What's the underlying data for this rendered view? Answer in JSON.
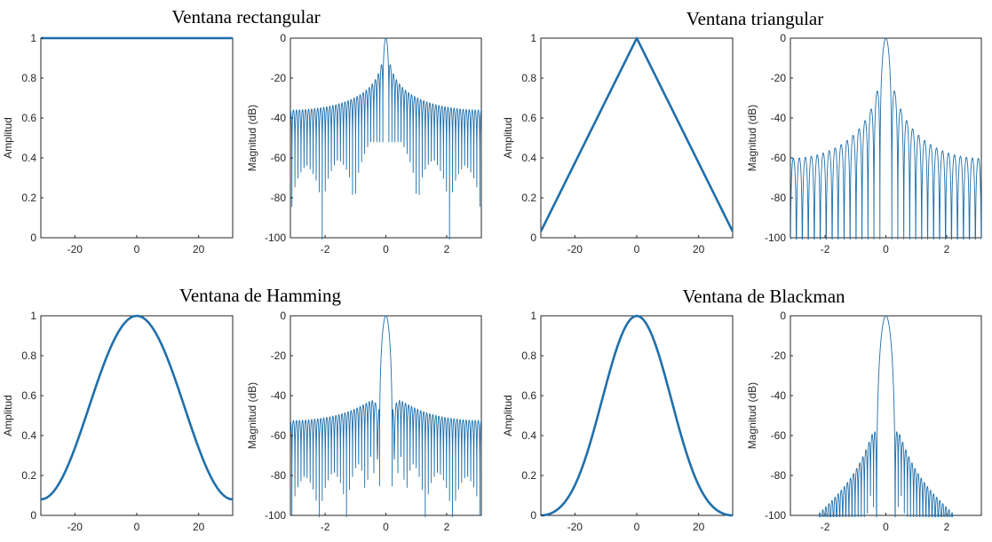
{
  "line_color": "#1f6fab",
  "chart_data": [
    {
      "type": "line",
      "panel": "time",
      "window": "rectangular",
      "title": "Ventana rectangular",
      "xlabel": "",
      "ylabel": "Amplitud",
      "xlim": [
        -31,
        31
      ],
      "ylim": [
        0,
        1
      ],
      "xticks": [
        -20,
        0,
        20
      ],
      "yticks": [
        0,
        0.2,
        0.4,
        0.6,
        0.8,
        1
      ],
      "x": [
        -31,
        -20,
        -10,
        0,
        10,
        20,
        31
      ],
      "values": [
        1,
        1,
        1,
        1,
        1,
        1,
        1
      ]
    },
    {
      "type": "line",
      "panel": "frequency",
      "window": "rectangular",
      "title": "",
      "xlabel": "",
      "ylabel": "Magnitud (dB)",
      "xlim": [
        -3.14159,
        3.14159
      ],
      "ylim": [
        -100,
        0
      ],
      "xticks": [
        -2,
        0,
        2
      ],
      "yticks": [
        -100,
        -80,
        -60,
        -40,
        -20,
        0
      ],
      "x": [
        -3.14,
        -2,
        -1,
        -0.5,
        -0.2,
        0,
        0.2,
        0.5,
        1,
        2,
        3.14
      ],
      "values": [
        -36,
        -37,
        -34,
        -30,
        -20,
        0,
        -20,
        -30,
        -34,
        -37,
        -36
      ]
    },
    {
      "type": "line",
      "panel": "time",
      "window": "triangular",
      "title": "Ventana triangular",
      "xlabel": "",
      "ylabel": "Amplitud",
      "xlim": [
        -31,
        31
      ],
      "ylim": [
        0,
        1
      ],
      "xticks": [
        -20,
        0,
        20
      ],
      "yticks": [
        0,
        0.2,
        0.4,
        0.6,
        0.8,
        1
      ],
      "x": [
        -31,
        -20,
        -10,
        0,
        10,
        20,
        31
      ],
      "values": [
        0.02,
        0.37,
        0.68,
        0.98,
        0.68,
        0.37,
        0.02
      ]
    },
    {
      "type": "line",
      "panel": "frequency",
      "window": "triangular",
      "title": "",
      "xlabel": "",
      "ylabel": "Magnitud (dB)",
      "xlim": [
        -3.14159,
        3.14159
      ],
      "ylim": [
        -100,
        0
      ],
      "xticks": [
        -2,
        0,
        2
      ],
      "yticks": [
        -100,
        -80,
        -60,
        -40,
        -20,
        0
      ],
      "x": [
        -3.14,
        -2,
        -1,
        -0.5,
        -0.2,
        0,
        0.2,
        0.5,
        1,
        2,
        3.14
      ],
      "values": [
        -85,
        -68,
        -52,
        -43,
        -30,
        0,
        -30,
        -43,
        -52,
        -68,
        -85
      ]
    },
    {
      "type": "line",
      "panel": "time",
      "window": "hamming",
      "title": "Ventana de Hamming",
      "xlabel": "",
      "ylabel": "Amplitud",
      "xlim": [
        -31,
        31
      ],
      "ylim": [
        0,
        1
      ],
      "xticks": [
        -20,
        0,
        20
      ],
      "yticks": [
        0,
        0.2,
        0.4,
        0.6,
        0.8,
        1
      ],
      "x": [
        -31,
        -20,
        -10,
        0,
        10,
        20,
        31
      ],
      "values": [
        0.08,
        0.43,
        0.83,
        1,
        0.83,
        0.43,
        0.08
      ]
    },
    {
      "type": "line",
      "panel": "frequency",
      "window": "hamming",
      "title": "",
      "xlabel": "",
      "ylabel": "Magnitud (dB)",
      "xlim": [
        -3.14159,
        3.14159
      ],
      "ylim": [
        -100,
        0
      ],
      "xticks": [
        -2,
        0,
        2
      ],
      "yticks": [
        -100,
        -80,
        -60,
        -40,
        -20,
        0
      ],
      "x": [
        -3.14,
        -2,
        -1,
        -0.3,
        -0.15,
        0,
        0.15,
        0.3,
        1,
        2,
        3.14
      ],
      "values": [
        -53,
        -52,
        -47,
        -43,
        -45,
        0,
        -45,
        -43,
        -47,
        -52,
        -53
      ]
    },
    {
      "type": "line",
      "panel": "time",
      "window": "blackman",
      "title": "Ventana de Blackman",
      "xlabel": "",
      "ylabel": "Amplitud",
      "xlim": [
        -31,
        31
      ],
      "ylim": [
        0,
        1
      ],
      "xticks": [
        -20,
        0,
        20
      ],
      "yticks": [
        0,
        0.2,
        0.4,
        0.6,
        0.8,
        1
      ],
      "x": [
        -31,
        -20,
        -10,
        0,
        10,
        20,
        31
      ],
      "values": [
        0,
        0.2,
        0.7,
        1,
        0.7,
        0.2,
        0
      ]
    },
    {
      "type": "line",
      "panel": "frequency",
      "window": "blackman",
      "title": "",
      "xlabel": "",
      "ylabel": "Magnitud (dB)",
      "xlim": [
        -3.14159,
        3.14159
      ],
      "ylim": [
        -100,
        0
      ],
      "xticks": [
        -2,
        0,
        2
      ],
      "yticks": [
        -100,
        -80,
        -60,
        -40,
        -20,
        0
      ],
      "x": [
        -3.14,
        -2.3,
        -1,
        -0.5,
        -0.25,
        0,
        0.25,
        0.5,
        1,
        2.3,
        3.14
      ],
      "values": [
        -100,
        -100,
        -80,
        -67,
        -58,
        0,
        -58,
        -67,
        -80,
        -100,
        -100
      ]
    }
  ]
}
